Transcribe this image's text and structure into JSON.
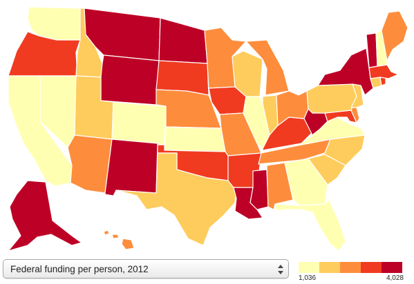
{
  "control": {
    "selected_label": "Federal funding per person, 2012",
    "icon": "up-down-arrows-icon"
  },
  "legend": {
    "min_label": "1,036",
    "max_label": "4,028",
    "colors": [
      "#ffffb2",
      "#fecc5c",
      "#fd8d3c",
      "#f03b20",
      "#bd0026"
    ]
  },
  "map_data": {
    "states": [
      {
        "id": "WA",
        "class": 0
      },
      {
        "id": "OR",
        "class": 3
      },
      {
        "id": "CA",
        "class": 0
      },
      {
        "id": "NV",
        "class": 0
      },
      {
        "id": "ID",
        "class": 1
      },
      {
        "id": "MT",
        "class": 4
      },
      {
        "id": "WY",
        "class": 4
      },
      {
        "id": "UT",
        "class": 1
      },
      {
        "id": "AZ",
        "class": 2
      },
      {
        "id": "CO",
        "class": 0
      },
      {
        "id": "NM",
        "class": 4
      },
      {
        "id": "ND",
        "class": 4
      },
      {
        "id": "SD",
        "class": 3
      },
      {
        "id": "NE",
        "class": 2
      },
      {
        "id": "KS",
        "class": 0
      },
      {
        "id": "OK",
        "class": 3
      },
      {
        "id": "TX",
        "class": 1
      },
      {
        "id": "MN",
        "class": 2
      },
      {
        "id": "IA",
        "class": 3
      },
      {
        "id": "MO",
        "class": 2
      },
      {
        "id": "AR",
        "class": 3
      },
      {
        "id": "LA",
        "class": 4
      },
      {
        "id": "WI",
        "class": 1
      },
      {
        "id": "IL",
        "class": 0
      },
      {
        "id": "MS",
        "class": 4
      },
      {
        "id": "MI",
        "class": 2
      },
      {
        "id": "IN",
        "class": 1
      },
      {
        "id": "KY",
        "class": 3
      },
      {
        "id": "TN",
        "class": 2
      },
      {
        "id": "AL",
        "class": 2
      },
      {
        "id": "OH",
        "class": 2
      },
      {
        "id": "WV",
        "class": 4
      },
      {
        "id": "GA",
        "class": 0
      },
      {
        "id": "FL",
        "class": 0
      },
      {
        "id": "SC",
        "class": 1
      },
      {
        "id": "NC",
        "class": 1
      },
      {
        "id": "VA",
        "class": 0
      },
      {
        "id": "MD",
        "class": 3
      },
      {
        "id": "DE",
        "class": 2
      },
      {
        "id": "PA",
        "class": 1
      },
      {
        "id": "NJ",
        "class": 1
      },
      {
        "id": "NY",
        "class": 4
      },
      {
        "id": "CT",
        "class": 1
      },
      {
        "id": "RI",
        "class": 3
      },
      {
        "id": "MA",
        "class": 3
      },
      {
        "id": "VT",
        "class": 4
      },
      {
        "id": "NH",
        "class": 0
      },
      {
        "id": "ME",
        "class": 2
      },
      {
        "id": "AK",
        "class": 4
      },
      {
        "id": "HI",
        "class": 2
      }
    ]
  }
}
